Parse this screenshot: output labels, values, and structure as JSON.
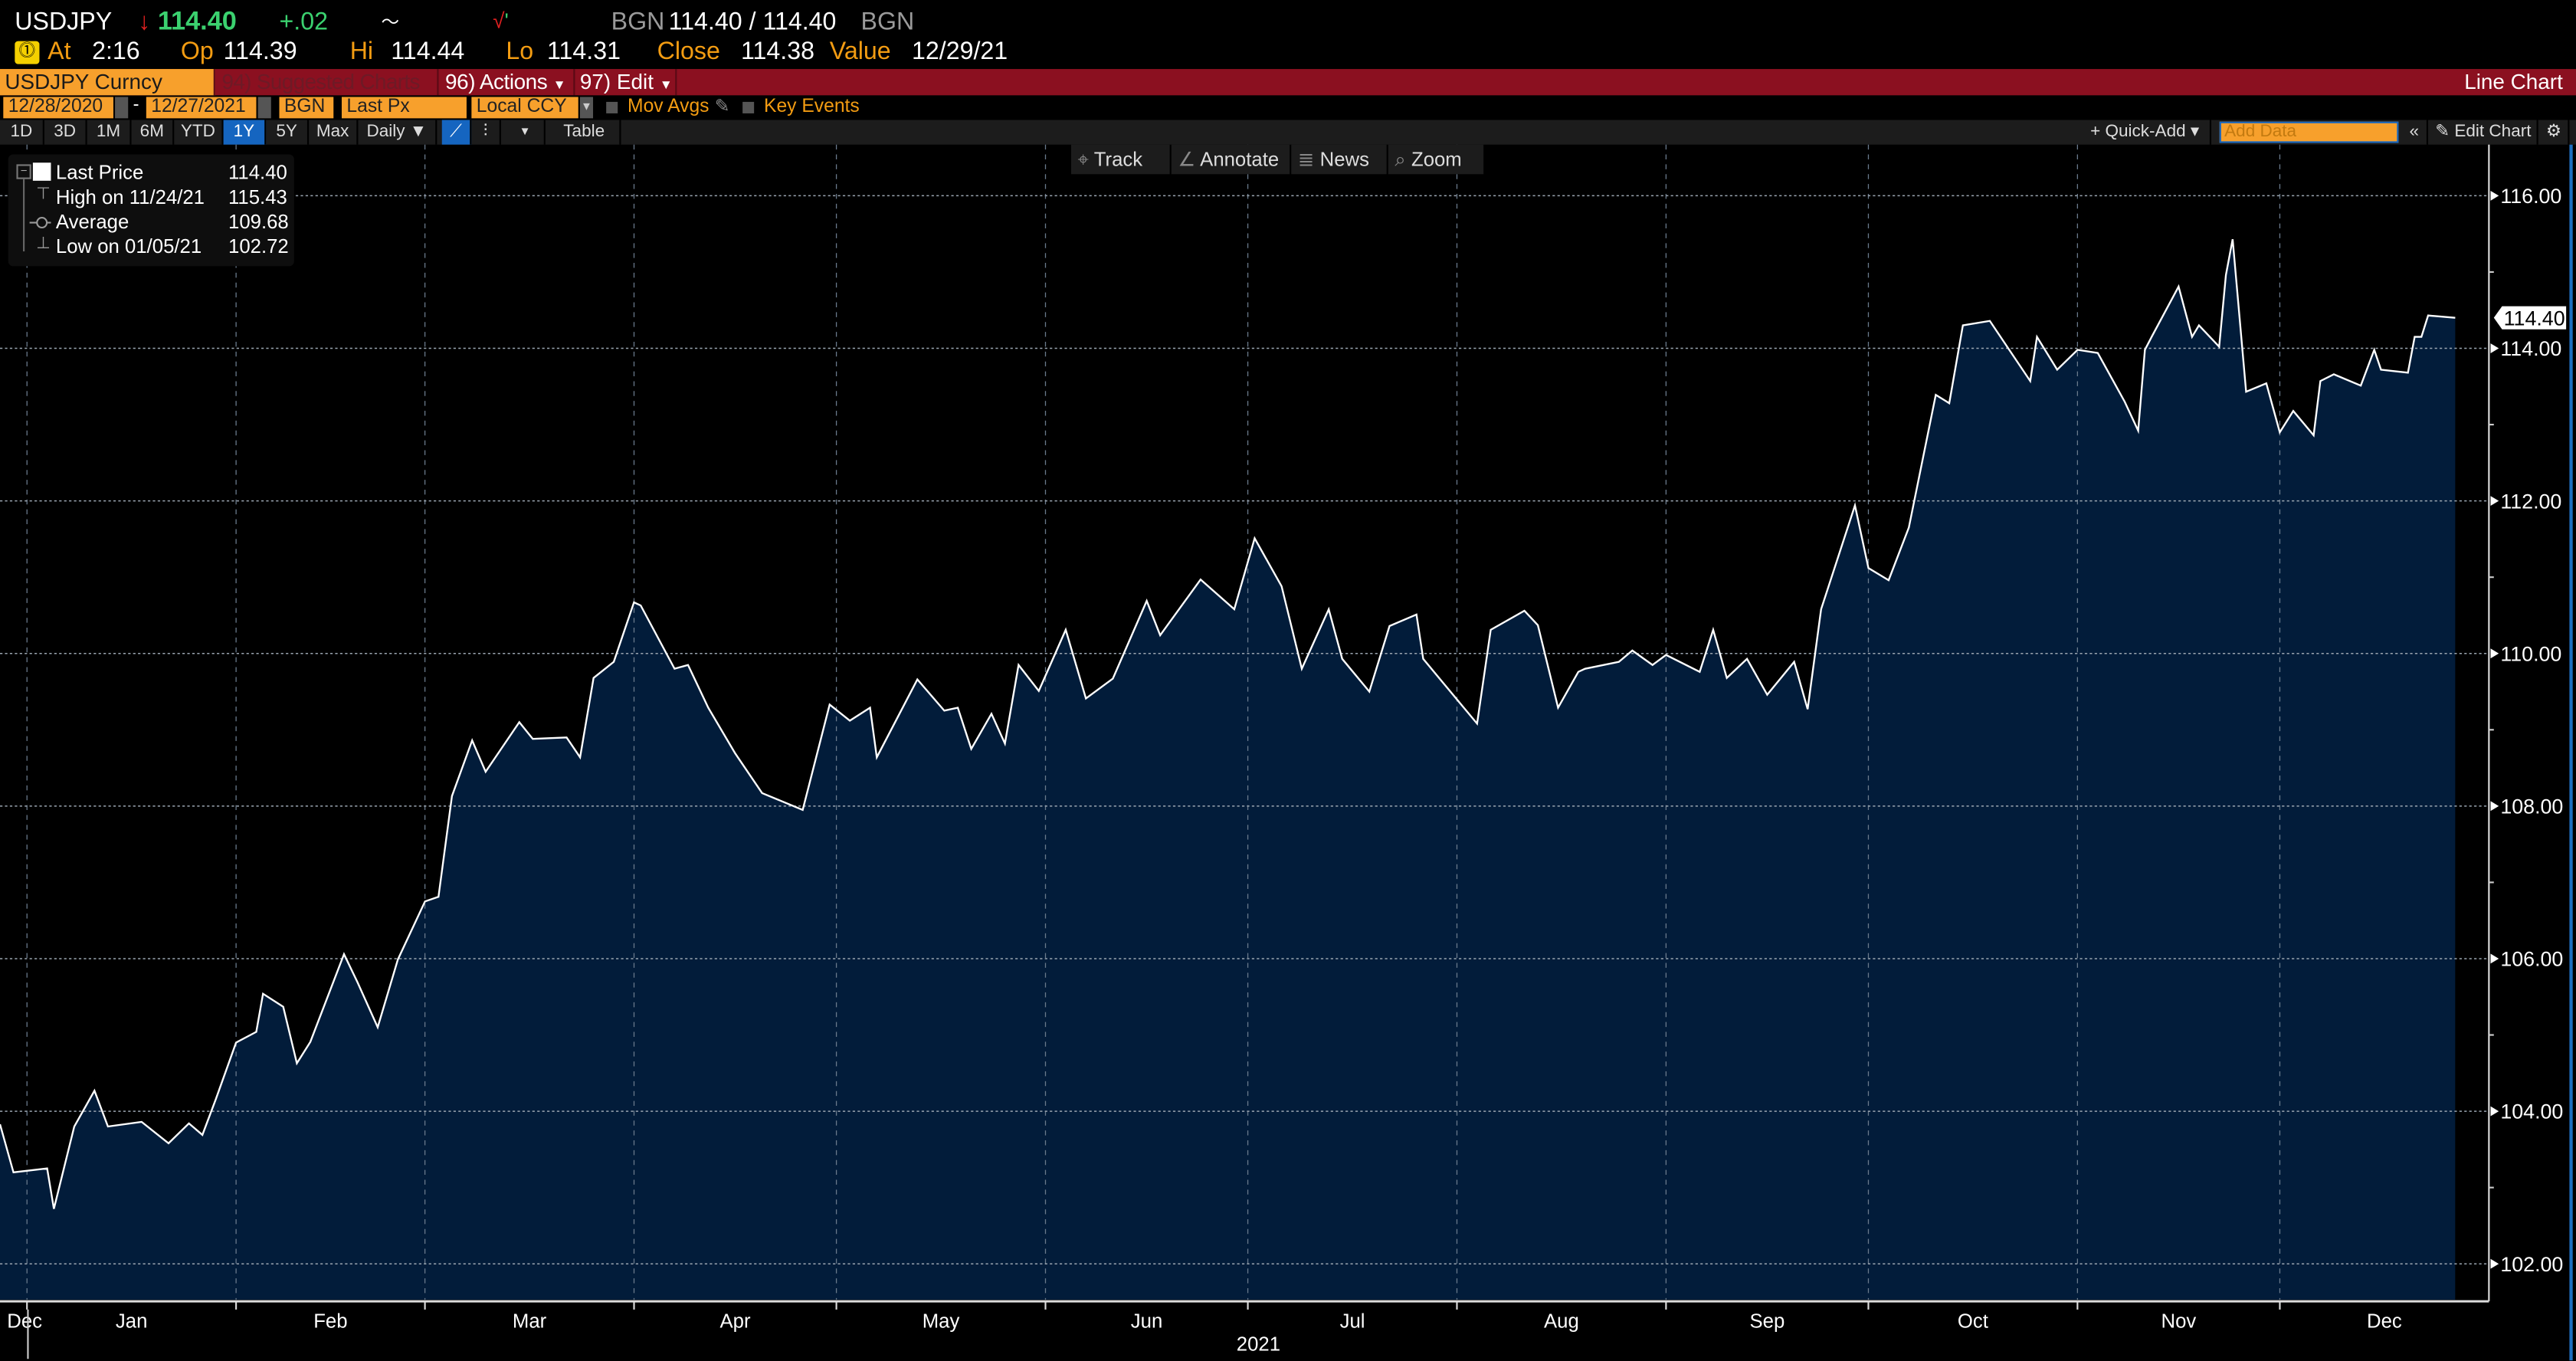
{
  "quote": {
    "ticker": "USDJPY",
    "last": "114.40",
    "change": "+.02",
    "bid_source": "BGN",
    "bid_ask": "114.40 / 114.40",
    "ask_source": "BGN",
    "at_label": "At",
    "time": "2:16",
    "open_label": "Op",
    "open": "114.39",
    "high_label": "Hi",
    "high": "114.44",
    "low_label": "Lo",
    "low": "114.31",
    "close_label": "Close",
    "close": "114.38",
    "value_label": "Value",
    "value_date": "12/29/21"
  },
  "menu": {
    "security": "USDJPY Curncy",
    "suggested": "94) Suggested Charts",
    "actions": "96) Actions",
    "edit": "97) Edit",
    "view_name": "Line Chart"
  },
  "params": {
    "start_date": "12/28/2020",
    "end_date": "12/27/2021",
    "source": "BGN",
    "field": "Last Px",
    "currency": "Local CCY",
    "mov_avgs": "Mov Avgs",
    "key_events": "Key Events"
  },
  "toolbar": {
    "ranges": [
      "1D",
      "3D",
      "1M",
      "6M",
      "YTD",
      "1Y",
      "5Y",
      "Max"
    ],
    "selected_range": "1Y",
    "frequency": "Daily ▼",
    "table": "Table",
    "quick_add": "+ Quick-Add ▾",
    "add_data_placeholder": "Add Data",
    "edit_chart": "Edit Chart"
  },
  "chart_tools": [
    "Track",
    "Annotate",
    "News",
    "Zoom"
  ],
  "legend": [
    {
      "label": "Last Price",
      "value": "114.40"
    },
    {
      "label": "High on 11/24/21",
      "value": "115.43"
    },
    {
      "label": "Average",
      "value": "109.68"
    },
    {
      "label": "Low on 01/05/21",
      "value": "102.72"
    }
  ],
  "chart_data": {
    "type": "area",
    "series": [
      {
        "name": "Last Price",
        "color": "#ffffff",
        "fill": "#021c3a",
        "points": [
          [
            "2020-12-28",
            103.83
          ],
          [
            "2020-12-30",
            103.2
          ],
          [
            "2021-01-04",
            103.25
          ],
          [
            "2021-01-05",
            102.72
          ],
          [
            "2021-01-08",
            103.8
          ],
          [
            "2021-01-11",
            104.27
          ],
          [
            "2021-01-13",
            103.8
          ],
          [
            "2021-01-18",
            103.86
          ],
          [
            "2021-01-22",
            103.58
          ],
          [
            "2021-01-25",
            103.84
          ],
          [
            "2021-01-27",
            103.69
          ],
          [
            "2021-01-29",
            104.16
          ],
          [
            "2021-02-01",
            104.9
          ],
          [
            "2021-02-04",
            105.04
          ],
          [
            "2021-02-05",
            105.54
          ],
          [
            "2021-02-08",
            105.37
          ],
          [
            "2021-02-10",
            104.63
          ],
          [
            "2021-02-12",
            104.91
          ],
          [
            "2021-02-17",
            106.06
          ],
          [
            "2021-02-19",
            105.69
          ],
          [
            "2021-02-22",
            105.1
          ],
          [
            "2021-02-25",
            105.99
          ],
          [
            "2021-03-01",
            106.75
          ],
          [
            "2021-03-03",
            106.81
          ],
          [
            "2021-03-05",
            108.13
          ],
          [
            "2021-03-08",
            108.86
          ],
          [
            "2021-03-10",
            108.45
          ],
          [
            "2021-03-15",
            109.1
          ],
          [
            "2021-03-17",
            108.88
          ],
          [
            "2021-03-22",
            108.9
          ],
          [
            "2021-03-24",
            108.64
          ],
          [
            "2021-03-26",
            109.68
          ],
          [
            "2021-03-29",
            109.89
          ],
          [
            "2021-04-01",
            110.67
          ],
          [
            "2021-04-02",
            110.63
          ],
          [
            "2021-04-07",
            109.8
          ],
          [
            "2021-04-09",
            109.85
          ],
          [
            "2021-04-12",
            109.29
          ],
          [
            "2021-04-16",
            108.69
          ],
          [
            "2021-04-20",
            108.17
          ],
          [
            "2021-04-26",
            107.95
          ],
          [
            "2021-04-28",
            108.64
          ],
          [
            "2021-04-30",
            109.33
          ],
          [
            "2021-05-03",
            109.12
          ],
          [
            "2021-05-06",
            109.29
          ],
          [
            "2021-05-07",
            108.64
          ],
          [
            "2021-05-13",
            109.66
          ],
          [
            "2021-05-17",
            109.25
          ],
          [
            "2021-05-19",
            109.29
          ],
          [
            "2021-05-21",
            108.75
          ],
          [
            "2021-05-24",
            109.21
          ],
          [
            "2021-05-26",
            108.82
          ],
          [
            "2021-05-28",
            109.85
          ],
          [
            "2021-05-31",
            109.51
          ],
          [
            "2021-06-04",
            110.31
          ],
          [
            "2021-06-07",
            109.41
          ],
          [
            "2021-06-11",
            109.67
          ],
          [
            "2021-06-16",
            110.69
          ],
          [
            "2021-06-18",
            110.24
          ],
          [
            "2021-06-24",
            110.97
          ],
          [
            "2021-06-29",
            110.58
          ],
          [
            "2021-07-02",
            111.51
          ],
          [
            "2021-07-06",
            110.88
          ],
          [
            "2021-07-09",
            109.8
          ],
          [
            "2021-07-13",
            110.58
          ],
          [
            "2021-07-15",
            109.93
          ],
          [
            "2021-07-19",
            109.5
          ],
          [
            "2021-07-22",
            110.36
          ],
          [
            "2021-07-26",
            110.51
          ],
          [
            "2021-07-27",
            109.93
          ],
          [
            "2021-07-30",
            109.61
          ],
          [
            "2021-08-04",
            109.08
          ],
          [
            "2021-08-06",
            110.31
          ],
          [
            "2021-08-11",
            110.56
          ],
          [
            "2021-08-13",
            110.37
          ],
          [
            "2021-08-16",
            109.29
          ],
          [
            "2021-08-19",
            109.76
          ],
          [
            "2021-08-20",
            109.8
          ],
          [
            "2021-08-25",
            109.89
          ],
          [
            "2021-08-27",
            110.04
          ],
          [
            "2021-08-30",
            109.85
          ],
          [
            "2021-09-01",
            109.98
          ],
          [
            "2021-09-06",
            109.76
          ],
          [
            "2021-09-08",
            110.31
          ],
          [
            "2021-09-10",
            109.68
          ],
          [
            "2021-09-13",
            109.93
          ],
          [
            "2021-09-16",
            109.46
          ],
          [
            "2021-09-20",
            109.89
          ],
          [
            "2021-09-22",
            109.27
          ],
          [
            "2021-09-24",
            110.58
          ],
          [
            "2021-09-29",
            111.94
          ],
          [
            "2021-10-01",
            111.12
          ],
          [
            "2021-10-04",
            110.96
          ],
          [
            "2021-10-07",
            111.65
          ],
          [
            "2021-10-11",
            113.39
          ],
          [
            "2021-10-13",
            113.28
          ],
          [
            "2021-10-15",
            114.3
          ],
          [
            "2021-10-19",
            114.36
          ],
          [
            "2021-10-25",
            113.57
          ],
          [
            "2021-10-26",
            114.15
          ],
          [
            "2021-10-29",
            113.72
          ],
          [
            "2021-11-01",
            113.98
          ],
          [
            "2021-11-04",
            113.94
          ],
          [
            "2021-11-08",
            113.3
          ],
          [
            "2021-11-10",
            112.92
          ],
          [
            "2021-11-11",
            113.98
          ],
          [
            "2021-11-12",
            114.15
          ],
          [
            "2021-11-16",
            114.81
          ],
          [
            "2021-11-18",
            114.15
          ],
          [
            "2021-11-19",
            114.3
          ],
          [
            "2021-11-22",
            114.02
          ],
          [
            "2021-11-23",
            114.96
          ],
          [
            "2021-11-24",
            115.43
          ],
          [
            "2021-11-26",
            113.43
          ],
          [
            "2021-11-29",
            113.54
          ],
          [
            "2021-12-01",
            112.9
          ],
          [
            "2021-12-03",
            113.18
          ],
          [
            "2021-12-06",
            112.86
          ],
          [
            "2021-12-07",
            113.57
          ],
          [
            "2021-12-09",
            113.66
          ],
          [
            "2021-12-13",
            113.51
          ],
          [
            "2021-12-15",
            113.98
          ],
          [
            "2021-12-16",
            113.72
          ],
          [
            "2021-12-20",
            113.68
          ],
          [
            "2021-12-21",
            114.15
          ],
          [
            "2021-12-22",
            114.15
          ],
          [
            "2021-12-23",
            114.43
          ],
          [
            "2021-12-27",
            114.4
          ]
        ]
      }
    ],
    "x_range": [
      "2020-12-28",
      "2022-01-01"
    ],
    "xticks": [
      {
        "label": "Dec",
        "month": "2020-12"
      },
      {
        "label": "Jan",
        "month": "2021-01"
      },
      {
        "label": "Feb",
        "month": "2021-02"
      },
      {
        "label": "Mar",
        "month": "2021-03"
      },
      {
        "label": "Apr",
        "month": "2021-04"
      },
      {
        "label": "May",
        "month": "2021-05"
      },
      {
        "label": "Jun",
        "month": "2021-06"
      },
      {
        "label": "Jul",
        "month": "2021-07"
      },
      {
        "label": "Aug",
        "month": "2021-08"
      },
      {
        "label": "Sep",
        "month": "2021-09"
      },
      {
        "label": "Oct",
        "month": "2021-10"
      },
      {
        "label": "Nov",
        "month": "2021-11"
      },
      {
        "label": "Dec",
        "month": "2021-12"
      }
    ],
    "year_label": "2021",
    "ylim": [
      101.53,
      116.67
    ],
    "yticks": [
      "102.00",
      "104.00",
      "106.00",
      "108.00",
      "110.00",
      "112.00",
      "114.00",
      "116.00"
    ],
    "last_value_tag": "114.40",
    "y_axis_side": "right",
    "grid": true,
    "legend_position": "top-left"
  }
}
